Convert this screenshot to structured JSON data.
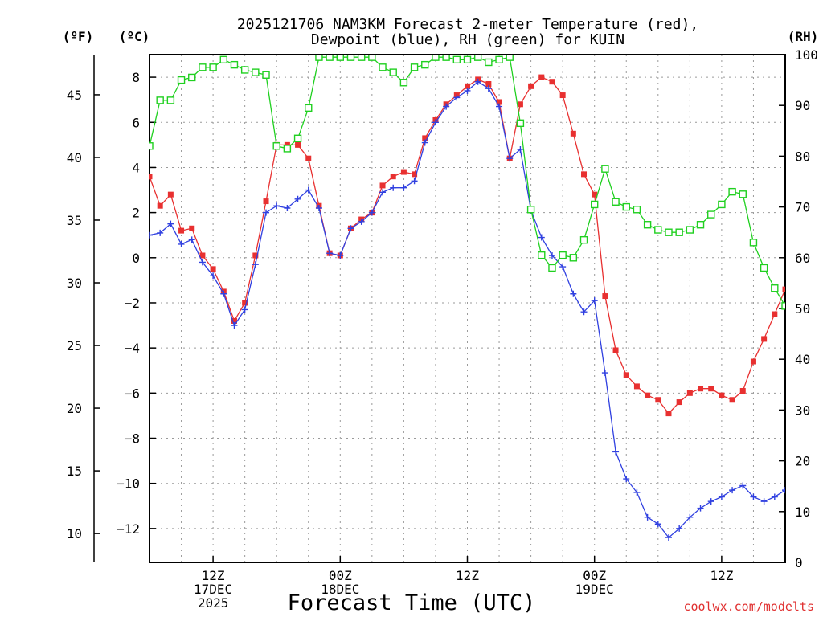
{
  "chart_data": {
    "type": "line",
    "title_line1": "2025121706 NAM3KM Forecast 2-meter Temperature (red),",
    "title_line2": "Dewpoint (blue), RH (green) for KUIN",
    "xlabel": "Forecast Time (UTC)",
    "watermark": "coolwx.com/modelts",
    "unit_labels": {
      "fahrenheit": "(ºF)",
      "celsius": "(ºC)",
      "rh": "(RH)"
    },
    "x_hours_range": [
      0,
      60
    ],
    "y_celsius_range": [
      -13.5,
      9
    ],
    "y_rh_range": [
      0,
      100
    ],
    "x_ticks": [
      {
        "hour": 6,
        "lines": [
          "12Z",
          "17DEC",
          "2025"
        ]
      },
      {
        "hour": 18,
        "lines": [
          "00Z",
          "18DEC"
        ]
      },
      {
        "hour": 30,
        "lines": [
          "12Z"
        ]
      },
      {
        "hour": 42,
        "lines": [
          "00Z",
          "19DEC"
        ]
      },
      {
        "hour": 54,
        "lines": [
          "12Z"
        ]
      }
    ],
    "y_celsius_ticks": [
      {
        "value": 8,
        "label": "8"
      },
      {
        "value": 6,
        "label": "6"
      },
      {
        "value": 4,
        "label": "4"
      },
      {
        "value": 2,
        "label": "2"
      },
      {
        "value": 0,
        "label": "0"
      },
      {
        "value": -2,
        "label": "−2"
      },
      {
        "value": -4,
        "label": "−4"
      },
      {
        "value": -6,
        "label": "−6"
      },
      {
        "value": -8,
        "label": "−8"
      },
      {
        "value": -10,
        "label": "−10"
      },
      {
        "value": -12,
        "label": "−12"
      }
    ],
    "y_fahrenheit_ticks": [
      {
        "value": 45,
        "label": "45"
      },
      {
        "value": 40,
        "label": "40"
      },
      {
        "value": 35,
        "label": "35"
      },
      {
        "value": 30,
        "label": "30"
      },
      {
        "value": 25,
        "label": "25"
      },
      {
        "value": 20,
        "label": "20"
      },
      {
        "value": 15,
        "label": "15"
      },
      {
        "value": 10,
        "label": "10"
      }
    ],
    "y_rh_ticks": [
      {
        "value": 100,
        "label": "100"
      },
      {
        "value": 90,
        "label": "90"
      },
      {
        "value": 80,
        "label": "80"
      },
      {
        "value": 70,
        "label": "70"
      },
      {
        "value": 60,
        "label": "60"
      },
      {
        "value": 50,
        "label": "50"
      },
      {
        "value": 40,
        "label": "40"
      },
      {
        "value": 30,
        "label": "30"
      },
      {
        "value": 20,
        "label": "20"
      },
      {
        "value": 10,
        "label": "10"
      },
      {
        "value": 0,
        "label": "0"
      }
    ],
    "series": [
      {
        "name": "Temperature",
        "color": "#e83030",
        "marker": "filled-square",
        "axis": "celsius",
        "x": [
          0,
          1,
          2,
          3,
          4,
          5,
          6,
          7,
          8,
          9,
          10,
          11,
          12,
          13,
          14,
          15,
          16,
          17,
          18,
          19,
          20,
          21,
          22,
          23,
          24,
          25,
          26,
          27,
          28,
          29,
          30,
          31,
          32,
          33,
          34,
          35,
          36,
          37,
          38,
          39,
          40,
          41,
          42,
          43,
          44,
          45,
          46,
          47,
          48,
          49,
          50,
          51,
          52,
          53,
          54,
          55,
          56,
          57,
          58,
          59,
          60
        ],
        "values": [
          3.6,
          2.3,
          2.8,
          1.2,
          1.3,
          0.1,
          -0.5,
          -1.5,
          -2.8,
          -2.0,
          0.1,
          2.5,
          5.0,
          5.0,
          5.0,
          4.4,
          2.3,
          0.2,
          0.1,
          1.3,
          1.7,
          2.0,
          3.2,
          3.6,
          3.8,
          3.7,
          5.3,
          6.1,
          6.8,
          7.2,
          7.6,
          7.9,
          7.7,
          6.9,
          4.4,
          6.8,
          7.6,
          8.0,
          7.8,
          7.2,
          5.5,
          3.7,
          2.8,
          -1.7,
          -4.1,
          -5.2,
          -5.7,
          -6.1,
          -6.3,
          -6.9,
          -6.4,
          -6.0,
          -5.8,
          -5.8,
          -6.1,
          -6.3,
          -5.9,
          -4.6,
          -3.6,
          -2.5,
          -1.4
        ]
      },
      {
        "name": "Dewpoint",
        "color": "#3040e0",
        "marker": "plus",
        "axis": "celsius",
        "x": [
          0,
          1,
          2,
          3,
          4,
          5,
          6,
          7,
          8,
          9,
          10,
          11,
          12,
          13,
          14,
          15,
          16,
          17,
          18,
          19,
          20,
          21,
          22,
          23,
          24,
          25,
          26,
          27,
          28,
          29,
          30,
          31,
          32,
          33,
          34,
          35,
          36,
          37,
          38,
          39,
          40,
          41,
          42,
          43,
          44,
          45,
          46,
          47,
          48,
          49,
          50,
          51,
          52,
          53,
          54,
          55,
          56,
          57,
          58,
          59,
          60
        ],
        "values": [
          1.0,
          1.1,
          1.5,
          0.6,
          0.8,
          -0.2,
          -0.8,
          -1.6,
          -3.0,
          -2.3,
          -0.3,
          2.0,
          2.3,
          2.2,
          2.6,
          3.0,
          2.2,
          0.2,
          0.1,
          1.3,
          1.6,
          2.0,
          2.9,
          3.1,
          3.1,
          3.4,
          5.1,
          6.0,
          6.7,
          7.1,
          7.4,
          7.8,
          7.5,
          6.7,
          4.4,
          4.8,
          2.1,
          0.9,
          0.1,
          -0.4,
          -1.6,
          -2.4,
          -1.9,
          -5.1,
          -8.6,
          -9.8,
          -10.4,
          -11.5,
          -11.8,
          -12.4,
          -12.0,
          -11.5,
          -11.1,
          -10.8,
          -10.6,
          -10.3,
          -10.1,
          -10.6,
          -10.8,
          -10.6,
          -10.3
        ]
      },
      {
        "name": "RH",
        "color": "#20d020",
        "marker": "open-square",
        "axis": "rh",
        "x": [
          0,
          1,
          2,
          3,
          4,
          5,
          6,
          7,
          8,
          9,
          10,
          11,
          12,
          13,
          14,
          15,
          16,
          17,
          18,
          19,
          20,
          21,
          22,
          23,
          24,
          25,
          26,
          27,
          28,
          29,
          30,
          31,
          32,
          33,
          34,
          35,
          36,
          37,
          38,
          39,
          40,
          41,
          42,
          43,
          44,
          45,
          46,
          47,
          48,
          49,
          50,
          51,
          52,
          53,
          54,
          55,
          56,
          57,
          58,
          59,
          60
        ],
        "values": [
          82,
          91,
          91,
          95,
          95.5,
          97.5,
          97.5,
          99,
          98,
          97,
          96.5,
          96,
          82,
          81.5,
          83.5,
          89.5,
          99.5,
          99.5,
          99.5,
          99.5,
          99.5,
          99.5,
          97.5,
          96.5,
          94.5,
          97.5,
          98,
          99.5,
          99.5,
          99,
          99,
          99.5,
          98.5,
          99,
          99.5,
          86.5,
          69.5,
          60.5,
          58,
          60.5,
          60,
          63.5,
          70.5,
          77.5,
          71,
          70,
          69.5,
          66.5,
          65.5,
          65,
          65,
          65.5,
          66.5,
          68.5,
          70.5,
          73,
          72.5,
          63,
          58,
          54,
          50.5
        ]
      }
    ]
  }
}
